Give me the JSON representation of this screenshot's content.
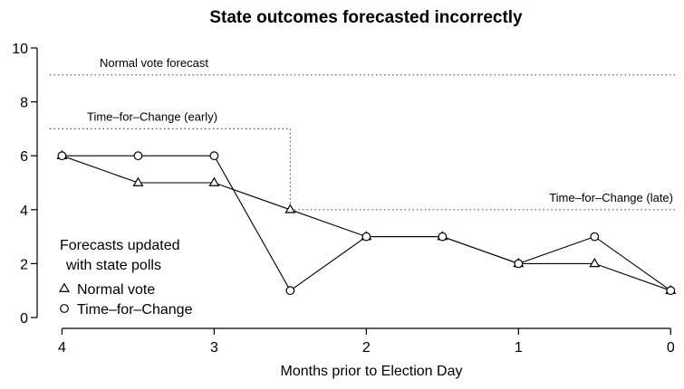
{
  "chart_data": {
    "type": "line",
    "title": "State outcomes forecasted incorrectly",
    "xlabel": "Months prior to Election Day",
    "ylabel": "",
    "xlim": [
      4.08,
      -0.04
    ],
    "ylim": [
      0,
      10
    ],
    "x_ticks": [
      4,
      3,
      2,
      1,
      0
    ],
    "y_ticks": [
      0,
      2,
      4,
      6,
      8,
      10
    ],
    "grid": false,
    "series": [
      {
        "name": "Normal vote",
        "marker": "triangle",
        "x": [
          4,
          3.5,
          3,
          2.5,
          2,
          1.5,
          1,
          0.5,
          0
        ],
        "values": [
          6,
          5,
          5,
          4,
          3,
          3,
          2,
          2,
          1
        ]
      },
      {
        "name": "Time-for-Change",
        "marker": "circle",
        "x": [
          4,
          3.5,
          3,
          2.5,
          2,
          1.5,
          1,
          0.5,
          0
        ],
        "values": [
          6,
          6,
          6,
          1,
          3,
          3,
          2,
          3,
          1
        ]
      }
    ],
    "reference_lines": [
      {
        "label": "Normal vote forecast",
        "value": 9,
        "x_from": 4.08,
        "x_to": -0.04
      },
      {
        "label": "Time–for–Change (early)",
        "value": 7,
        "x_from": 4.08,
        "x_to": 2.5
      },
      {
        "label": "Time–for–Change (late)",
        "value": 4,
        "x_from": 2.5,
        "x_to": -0.04
      }
    ],
    "legend": {
      "title_lines": [
        "Forecasts updated",
        "with state polls"
      ],
      "entries": [
        {
          "label": "Normal vote",
          "marker": "triangle"
        },
        {
          "label": "Time–for–Change",
          "marker": "circle"
        }
      ],
      "placement": "bottom-left"
    }
  }
}
